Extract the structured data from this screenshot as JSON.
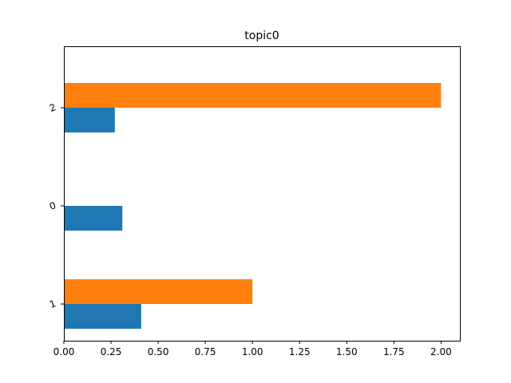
{
  "chart_data": {
    "type": "bar",
    "orientation": "horizontal",
    "title": "topic0",
    "xlabel": "",
    "ylabel": "",
    "xlim": [
      0,
      2.1
    ],
    "x_ticks": [
      "0.00",
      "0.25",
      "0.50",
      "0.75",
      "1.00",
      "1.25",
      "1.50",
      "1.75",
      "2.00"
    ],
    "categories": [
      "1",
      "0",
      "2"
    ],
    "series": [
      {
        "color": "#1f77b4",
        "values": [
          0.41,
          0.31,
          0.27
        ]
      },
      {
        "color": "#ff7f0e",
        "values": [
          1.0,
          0,
          2.0
        ]
      }
    ],
    "grid": false,
    "legend": "none"
  }
}
